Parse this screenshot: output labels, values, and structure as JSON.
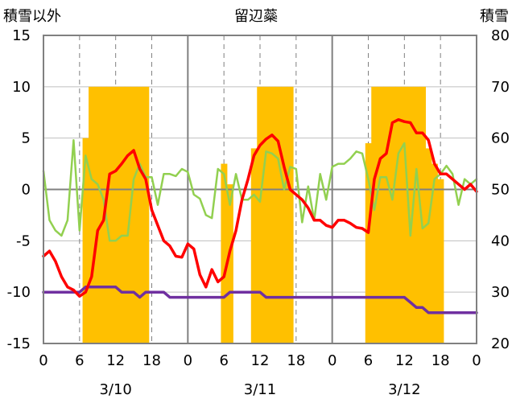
{
  "chart_data": {
    "type": "line",
    "title": "留辺蘂",
    "left_axis": {
      "label": "積雪以外",
      "ylim": [
        -15,
        15
      ],
      "ticks": [
        15,
        10,
        5,
        0,
        -5,
        -10,
        -15
      ]
    },
    "right_axis": {
      "label": "積雪",
      "ylim": [
        20,
        80
      ],
      "ticks": [
        80,
        70,
        60,
        50,
        40,
        30,
        20
      ]
    },
    "x_hours": [
      0,
      72
    ],
    "x_tick_labels": [
      "0",
      "6",
      "12",
      "18",
      "0",
      "6",
      "12",
      "18",
      "0",
      "6",
      "12",
      "18",
      "0"
    ],
    "date_labels": [
      "3/10",
      "3/11",
      "3/12"
    ],
    "grid": true,
    "colors": {
      "red": "#ff0000",
      "green": "#92d050",
      "purple": "#7030a0",
      "bars": "#ffc000"
    },
    "bars": {
      "axis": "right",
      "x": [
        7,
        8,
        9,
        10,
        11,
        12,
        13,
        14,
        15,
        16,
        17,
        30,
        31,
        35,
        36,
        37,
        38,
        39,
        40,
        41,
        54,
        55,
        56,
        57,
        58,
        59,
        60,
        61,
        62,
        63,
        64,
        65,
        66
      ],
      "values": [
        60,
        70,
        70,
        70,
        70,
        70,
        70,
        70,
        70,
        70,
        70,
        55,
        51,
        58,
        70,
        70,
        70,
        70,
        70,
        70,
        59,
        70,
        70,
        70,
        70,
        70,
        70,
        70,
        70,
        70,
        58,
        55,
        52
      ]
    },
    "series": [
      {
        "color": "red",
        "axis": "left",
        "x": [
          0,
          1,
          2,
          3,
          4,
          5,
          6,
          7,
          8,
          9,
          10,
          11,
          12,
          13,
          14,
          15,
          16,
          17,
          18,
          19,
          20,
          21,
          22,
          23,
          24,
          25,
          26,
          27,
          28,
          29,
          30,
          31,
          32,
          33,
          34,
          35,
          36,
          37,
          38,
          39,
          40,
          41,
          42,
          43,
          44,
          45,
          46,
          47,
          48,
          49,
          50,
          51,
          52,
          53,
          54,
          55,
          56,
          57,
          58,
          59,
          60,
          61,
          62,
          63,
          64,
          65,
          66,
          67,
          68,
          69,
          70,
          71,
          72
        ],
        "values": [
          -6.5,
          -6,
          -7,
          -8.5,
          -9.5,
          -9.8,
          -10.4,
          -10,
          -8.5,
          -4,
          -3,
          1.5,
          1.8,
          2.5,
          3.3,
          3.8,
          2,
          1,
          -2,
          -3.5,
          -5,
          -5.5,
          -6.5,
          -6.6,
          -5.3,
          -5.8,
          -8.3,
          -9.5,
          -7.8,
          -9,
          -8.5,
          -6,
          -4,
          -1,
          1,
          3.3,
          4.3,
          4.9,
          5.3,
          4.7,
          2.2,
          0,
          -0.5,
          -1,
          -1.8,
          -3,
          -3,
          -3.5,
          -3.7,
          -3,
          -3,
          -3.3,
          -3.7,
          -3.8,
          -4.2,
          1,
          3,
          3.5,
          6.5,
          6.8,
          6.6,
          6.5,
          5.5,
          5.5,
          4.8,
          2.5,
          1.5,
          1.5,
          1,
          0.5,
          0,
          0.5,
          -0.2
        ]
      },
      {
        "color": "green",
        "axis": "left",
        "x": [
          0,
          1,
          2,
          3,
          4,
          5,
          6,
          7,
          8,
          9,
          10,
          11,
          12,
          13,
          14,
          15,
          16,
          17,
          18,
          19,
          20,
          21,
          22,
          23,
          24,
          25,
          26,
          27,
          28,
          29,
          30,
          31,
          32,
          33,
          34,
          35,
          36,
          37,
          38,
          39,
          40,
          41,
          42,
          43,
          44,
          45,
          46,
          47,
          48,
          49,
          50,
          51,
          52,
          53,
          54,
          55,
          56,
          57,
          58,
          59,
          60,
          61,
          62,
          63,
          64,
          65,
          66,
          67,
          68,
          69,
          70,
          71,
          72
        ],
        "values": [
          1.8,
          -3,
          -4,
          -4.5,
          -3,
          4.8,
          -4,
          3.3,
          1,
          0.5,
          -1,
          -5,
          -5,
          -4.5,
          -4.5,
          1,
          2.5,
          1.2,
          1.2,
          -1.5,
          1.5,
          1.5,
          1.3,
          2,
          1.7,
          -0.5,
          -0.9,
          -2.5,
          -2.8,
          2,
          1.5,
          -1.5,
          1.5,
          -1,
          -1,
          -0.5,
          -1.2,
          3.7,
          3.5,
          3,
          0,
          2.2,
          2,
          -3.2,
          0.3,
          -3,
          1.5,
          -1,
          2.2,
          2.5,
          2.5,
          3,
          3.7,
          3.5,
          1,
          -2,
          1.2,
          1.2,
          -1,
          3.5,
          4.5,
          -4.5,
          2,
          -3.8,
          -3.3,
          1,
          1.5,
          2.3,
          1.5,
          -1.5,
          1,
          0.5,
          1
        ]
      },
      {
        "color": "purple",
        "axis": "left",
        "x": [
          0,
          6,
          7,
          12,
          13,
          15,
          16,
          17,
          20,
          21,
          30,
          31,
          36,
          37,
          60,
          61,
          62,
          63,
          64,
          72
        ],
        "values": [
          -10,
          -10,
          -9.5,
          -9.5,
          -10,
          -10,
          -10.5,
          -10,
          -10,
          -10.5,
          -10.5,
          -10,
          -10,
          -10.5,
          -10.5,
          -11,
          -11.5,
          -11.5,
          -12,
          -12
        ]
      }
    ]
  }
}
